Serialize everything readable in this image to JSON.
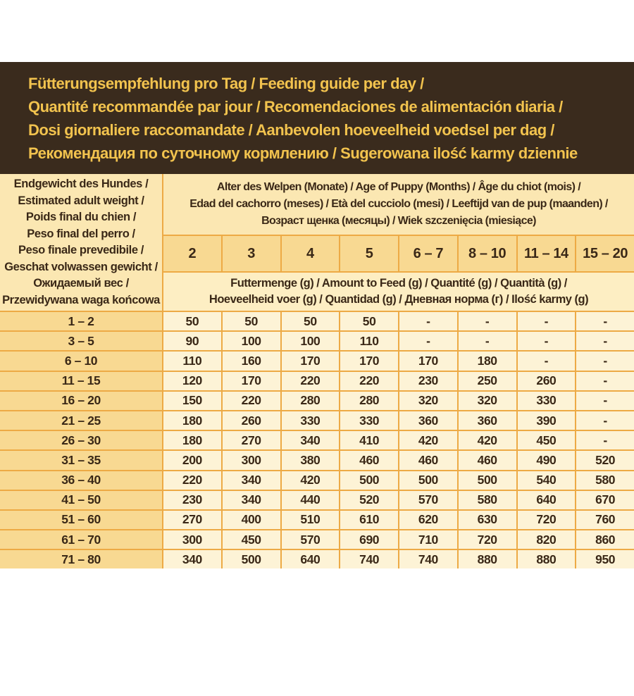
{
  "banner": {
    "bg": "#3a2b1d",
    "text_color": "#f2c34e",
    "lines": [
      "Fütterungsempfehlung pro Tag / Feeding guide per day /",
      "Quantité recommandée par jour / Recomendaciones de alimentación diaria /",
      "Dosi giornaliere raccomandate / Aanbevolen hoeveelheid voedsel per dag /",
      "Рекомендация по суточному кормлению / Sugerowana ilość karmy dziennie"
    ]
  },
  "table": {
    "colors": {
      "border": "#edaa45",
      "header_bg": "#fbe7b2",
      "months_bg": "#f8d992",
      "amount_bg": "#fdeec3",
      "cell_bg": "#fdf3d6",
      "text": "#3a2817"
    },
    "weight_header_lines": [
      "Endgewicht des Hundes /",
      "Estimated adult weight /",
      "Poids final du chien /",
      "Peso final del perro /",
      "Peso finale prevedibile /",
      "Geschat volwassen gewicht /",
      "Ожидаемый вес /",
      "Przewidywana waga końcowa"
    ],
    "age_header_lines": [
      "Alter des Welpen (Monate) / Age of Puppy (Months) / Âge du chiot (mois) /",
      "Edad del cachorro (meses) / Età del cucciolo (mesi) / Leeftijd van de pup (maanden) /",
      "Возраст щенка (месяцы) / Wiek szczenięcia (miesiące)"
    ],
    "months": [
      "2",
      "3",
      "4",
      "5",
      "6 – 7",
      "8 – 10",
      "11 – 14",
      "15 – 20"
    ],
    "amount_header_lines": [
      "Futtermenge (g) / Amount to Feed (g) / Quantité (g) / Quantità (g) /",
      "Hoeveelheid voer (g) / Quantidad (g) / Дневная норма (г) / Ilość karmy (g)"
    ],
    "rows": [
      {
        "weight": "1 – 2",
        "values": [
          "50",
          "50",
          "50",
          "50",
          "-",
          "-",
          "-",
          "-"
        ]
      },
      {
        "weight": "3 – 5",
        "values": [
          "90",
          "100",
          "100",
          "110",
          "-",
          "-",
          "-",
          "-"
        ]
      },
      {
        "weight": "6 – 10",
        "values": [
          "110",
          "160",
          "170",
          "170",
          "170",
          "180",
          "-",
          "-"
        ]
      },
      {
        "weight": "11 – 15",
        "values": [
          "120",
          "170",
          "220",
          "220",
          "230",
          "250",
          "260",
          "-"
        ]
      },
      {
        "weight": "16 – 20",
        "values": [
          "150",
          "220",
          "280",
          "280",
          "320",
          "320",
          "330",
          "-"
        ]
      },
      {
        "weight": "21 – 25",
        "values": [
          "180",
          "260",
          "330",
          "330",
          "360",
          "360",
          "390",
          "-"
        ]
      },
      {
        "weight": "26 – 30",
        "values": [
          "180",
          "270",
          "340",
          "410",
          "420",
          "420",
          "450",
          "-"
        ]
      },
      {
        "weight": "31 – 35",
        "values": [
          "200",
          "300",
          "380",
          "460",
          "460",
          "460",
          "490",
          "520"
        ]
      },
      {
        "weight": "36 – 40",
        "values": [
          "220",
          "340",
          "420",
          "500",
          "500",
          "500",
          "540",
          "580"
        ]
      },
      {
        "weight": "41 – 50",
        "values": [
          "230",
          "340",
          "440",
          "520",
          "570",
          "580",
          "640",
          "670"
        ]
      },
      {
        "weight": "51 – 60",
        "values": [
          "270",
          "400",
          "510",
          "610",
          "620",
          "630",
          "720",
          "760"
        ]
      },
      {
        "weight": "61 – 70",
        "values": [
          "300",
          "450",
          "570",
          "690",
          "710",
          "720",
          "820",
          "860"
        ]
      },
      {
        "weight": "71 – 80",
        "values": [
          "340",
          "500",
          "640",
          "740",
          "740",
          "880",
          "880",
          "950"
        ]
      }
    ]
  }
}
